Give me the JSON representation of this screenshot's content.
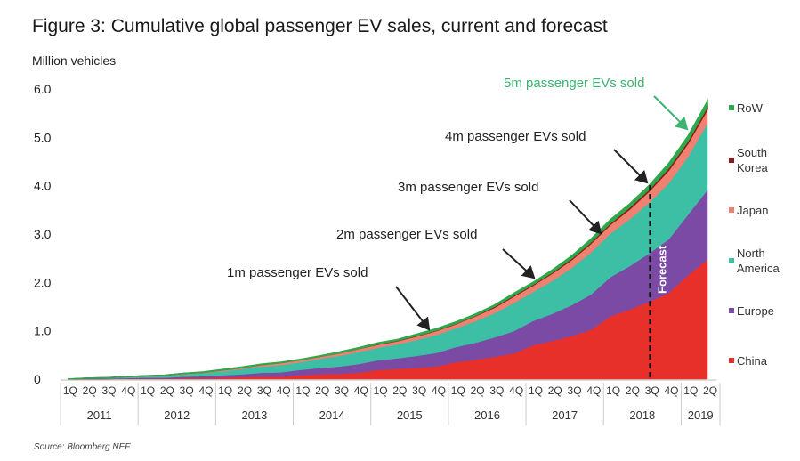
{
  "chart_data": {
    "type": "area",
    "stacked": true,
    "title": "Figure 3: Cumulative global passenger EV sales, current and forecast",
    "ylabel": "Million vehicles",
    "xlabel": "",
    "ylim": [
      0,
      6.0
    ],
    "yticks": [
      "0",
      "1.0",
      "2.0",
      "3.0",
      "4.0",
      "5.0",
      "6.0"
    ],
    "grid": false,
    "legend_placement": "right",
    "years": [
      "2011",
      "2012",
      "2013",
      "2014",
      "2015",
      "2016",
      "2017",
      "2018",
      "2019"
    ],
    "quarter_labels": [
      "1Q",
      "2Q",
      "3Q",
      "4Q",
      "1Q",
      "2Q",
      "3Q",
      "4Q",
      "1Q",
      "2Q",
      "3Q",
      "4Q",
      "1Q",
      "2Q",
      "3Q",
      "4Q",
      "1Q",
      "2Q",
      "3Q",
      "4Q",
      "1Q",
      "2Q",
      "3Q",
      "4Q",
      "1Q",
      "2Q",
      "3Q",
      "4Q",
      "1Q",
      "2Q",
      "3Q",
      "4Q",
      "1Q",
      "2Q"
    ],
    "series": [
      {
        "name": "China",
        "color": "#e8302a",
        "values": [
          0.0,
          0.0,
          0.0,
          0.01,
          0.01,
          0.01,
          0.02,
          0.02,
          0.03,
          0.04,
          0.05,
          0.05,
          0.08,
          0.1,
          0.11,
          0.13,
          0.19,
          0.21,
          0.23,
          0.26,
          0.35,
          0.4,
          0.46,
          0.53,
          0.7,
          0.79,
          0.89,
          1.02,
          1.3,
          1.44,
          1.6,
          1.78,
          2.15,
          2.47
        ]
      },
      {
        "name": "Europe",
        "color": "#7a4aa5",
        "values": [
          0.0,
          0.01,
          0.01,
          0.01,
          0.02,
          0.02,
          0.03,
          0.04,
          0.05,
          0.06,
          0.08,
          0.09,
          0.11,
          0.13,
          0.15,
          0.18,
          0.2,
          0.22,
          0.25,
          0.28,
          0.31,
          0.35,
          0.4,
          0.46,
          0.5,
          0.56,
          0.64,
          0.73,
          0.81,
          0.9,
          1.0,
          1.11,
          1.25,
          1.44
        ]
      },
      {
        "name": "North America",
        "color": "#3dbfa5",
        "values": [
          0.0,
          0.01,
          0.01,
          0.02,
          0.03,
          0.04,
          0.05,
          0.06,
          0.08,
          0.11,
          0.13,
          0.15,
          0.16,
          0.19,
          0.22,
          0.25,
          0.26,
          0.29,
          0.33,
          0.37,
          0.39,
          0.44,
          0.5,
          0.58,
          0.6,
          0.68,
          0.77,
          0.87,
          0.9,
          0.97,
          1.05,
          1.16,
          1.2,
          1.38
        ]
      },
      {
        "name": "Japan",
        "color": "#f08070",
        "values": [
          0.0,
          0.0,
          0.01,
          0.01,
          0.01,
          0.01,
          0.02,
          0.02,
          0.03,
          0.03,
          0.04,
          0.05,
          0.05,
          0.05,
          0.06,
          0.07,
          0.07,
          0.07,
          0.08,
          0.09,
          0.09,
          0.11,
          0.12,
          0.14,
          0.14,
          0.16,
          0.17,
          0.19,
          0.19,
          0.21,
          0.24,
          0.27,
          0.28,
          0.29
        ]
      },
      {
        "name": "South Korea",
        "color": "#8b1a1a",
        "values": [
          0,
          0,
          0,
          0,
          0,
          0,
          0,
          0,
          0,
          0,
          0,
          0,
          0,
          0,
          0,
          0,
          0.01,
          0.01,
          0.01,
          0.01,
          0.01,
          0.01,
          0.02,
          0.02,
          0.02,
          0.02,
          0.03,
          0.03,
          0.03,
          0.04,
          0.04,
          0.05,
          0.05,
          0.06
        ]
      },
      {
        "name": "RoW",
        "color": "#2ea84a",
        "values": [
          0,
          0,
          0,
          0,
          0,
          0,
          0,
          0.01,
          0.01,
          0.01,
          0.01,
          0.01,
          0.01,
          0.01,
          0.02,
          0.02,
          0.02,
          0.02,
          0.03,
          0.03,
          0.03,
          0.03,
          0.03,
          0.04,
          0.04,
          0.05,
          0.05,
          0.06,
          0.07,
          0.07,
          0.08,
          0.09,
          0.1,
          0.11
        ]
      }
    ],
    "legend": [
      {
        "label": [
          "RoW"
        ],
        "color": "#2ea84a"
      },
      {
        "label": [
          "South",
          "Korea"
        ],
        "color": "#8b1a1a"
      },
      {
        "label": [
          "Japan"
        ],
        "color": "#f08070"
      },
      {
        "label": [
          "North",
          "America"
        ],
        "color": "#3dbfa5"
      },
      {
        "label": [
          "Europe"
        ],
        "color": "#7a4aa5"
      },
      {
        "label": [
          "China"
        ],
        "color": "#e8302a"
      }
    ],
    "forecast_label": "Forecast",
    "forecast_start": "2018 3Q",
    "annotations": [
      {
        "text": "1m passenger EVs sold",
        "color": "#222222"
      },
      {
        "text": "2m passenger EVs sold",
        "color": "#222222"
      },
      {
        "text": "3m passenger EVs sold",
        "color": "#222222"
      },
      {
        "text": "4m passenger EVs sold",
        "color": "#222222"
      },
      {
        "text": "5m passenger EVs sold",
        "color": "#3cb371"
      }
    ],
    "source": "Source: Bloomberg NEF"
  }
}
